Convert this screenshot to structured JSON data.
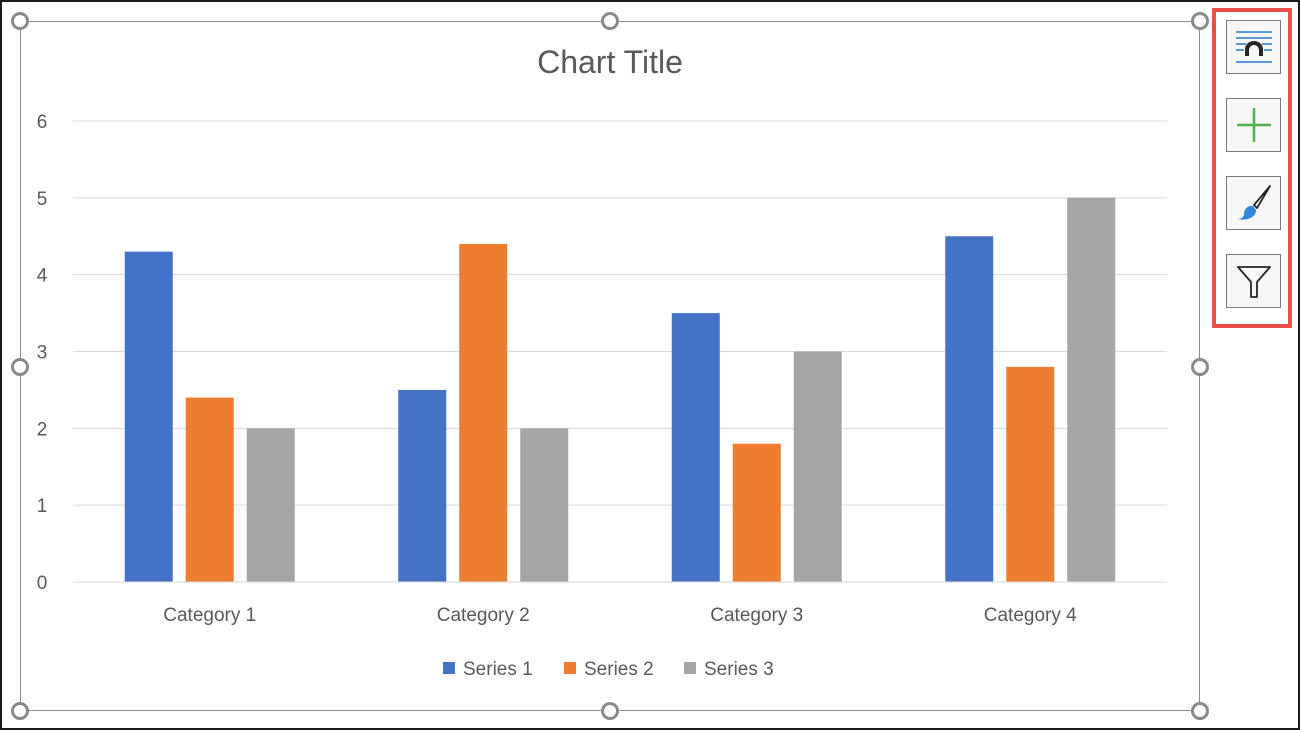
{
  "chart_data": {
    "type": "bar",
    "title": "Chart Title",
    "categories": [
      "Category 1",
      "Category 2",
      "Category 3",
      "Category 4"
    ],
    "series": [
      {
        "name": "Series 1",
        "color": "#4472c4",
        "values": [
          4.3,
          2.5,
          3.5,
          4.5
        ]
      },
      {
        "name": "Series 2",
        "color": "#ed7d31",
        "values": [
          2.4,
          4.4,
          1.8,
          2.8
        ]
      },
      {
        "name": "Series 3",
        "color": "#a5a5a5",
        "values": [
          2,
          2,
          3,
          5
        ]
      }
    ],
    "ylim": [
      0,
      6
    ],
    "yticks": [
      "0",
      "1",
      "2",
      "3",
      "4",
      "5",
      "6"
    ],
    "grid": true,
    "legend_position": "bottom"
  },
  "toolbar": {
    "buttons": [
      {
        "icon": "layout-options-icon",
        "name": "layout-options-button"
      },
      {
        "icon": "plus-icon",
        "name": "chart-elements-button"
      },
      {
        "icon": "paintbrush-icon",
        "name": "chart-styles-button"
      },
      {
        "icon": "funnel-icon",
        "name": "chart-filters-button"
      }
    ],
    "highlight_color": "#e8504a"
  }
}
